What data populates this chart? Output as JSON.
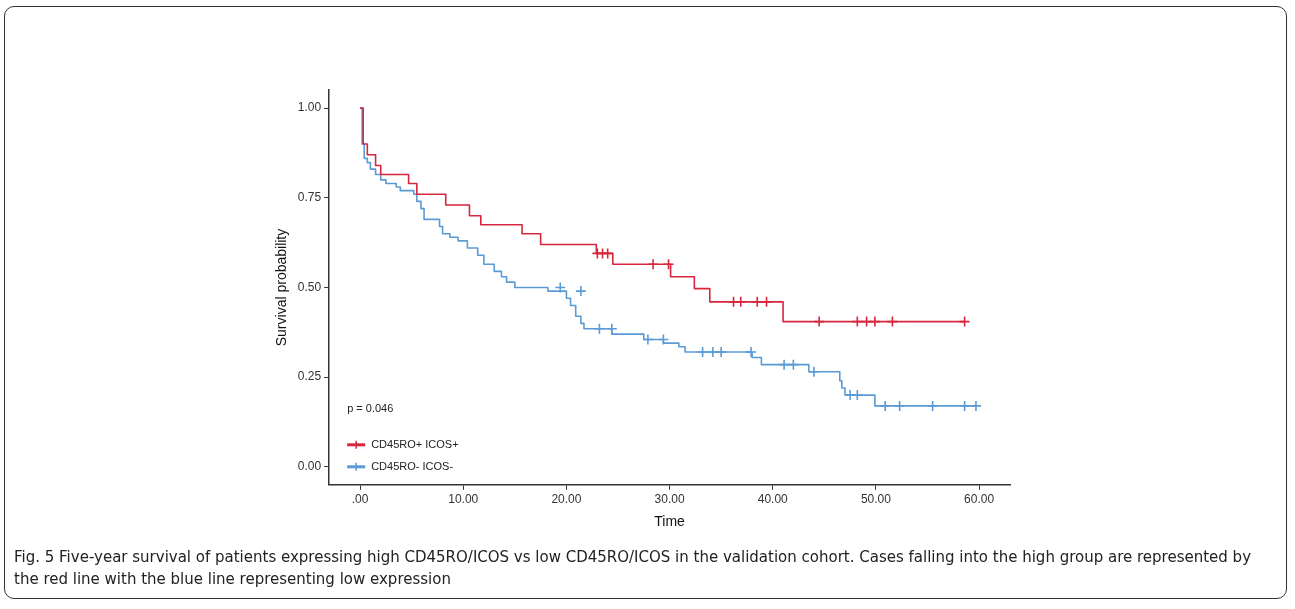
{
  "chart_data": {
    "type": "step",
    "xlabel": "Time",
    "ylabel": "Survival probability",
    "xlim": [
      -3,
      63
    ],
    "xticks": [
      {
        "value": 0,
        "label": ".00"
      },
      {
        "value": 10,
        "label": "10.00"
      },
      {
        "value": 20,
        "label": "20.00"
      },
      {
        "value": 30,
        "label": "30.00"
      },
      {
        "value": 40,
        "label": "40.00"
      },
      {
        "value": 50,
        "label": "50.00"
      },
      {
        "value": 60,
        "label": "60.00"
      }
    ],
    "ylim": [
      -0.05,
      1.05
    ],
    "yticks": [
      {
        "value": 0,
        "label": "0.00"
      },
      {
        "value": 0.25,
        "label": "0.25"
      },
      {
        "value": 0.5,
        "label": "0.50"
      },
      {
        "value": 0.75,
        "label": "0.75"
      },
      {
        "value": 1,
        "label": "1.00"
      }
    ],
    "grid": false,
    "legend": "bottom left",
    "line_style": "solid",
    "series": [
      {
        "name": "CD45RO+ ICOS+",
        "color": "#d7263d",
        "marker": "none",
        "x": [
          0,
          0.3,
          0.7,
          1.5,
          2,
          4.7,
          5.5,
          8.3,
          10.6,
          11.7,
          15.7,
          17.5,
          22.9,
          24.5,
          30.1,
          32.4,
          33.9,
          41,
          58.6
        ],
        "values": [
          1,
          0.9,
          0.87,
          0.84,
          0.815,
          0.79,
          0.76,
          0.73,
          0.7,
          0.675,
          0.65,
          0.62,
          0.595,
          0.565,
          0.53,
          0.497,
          0.46,
          0.405,
          0.405
        ]
      },
      {
        "name": "CD45RO- ICOS-",
        "color": "#5b9bd5",
        "marker": "none",
        "x": [
          0,
          0.2,
          0.4,
          0.7,
          1,
          1.5,
          2,
          2.5,
          3.5,
          3.9,
          5.2,
          5.5,
          5.9,
          6.2,
          7.7,
          8,
          8.7,
          9.5,
          10.4,
          11.4,
          12,
          13,
          13.7,
          14.2,
          15,
          18.2,
          20,
          20.4,
          20.9,
          21.4,
          21.7,
          24.4,
          27.5,
          29.4,
          30.9,
          31.5,
          38,
          38.9,
          43.5,
          46.5,
          46.7,
          47,
          47.2,
          49.9,
          59.7
        ],
        "values": [
          1,
          0.9,
          0.86,
          0.848,
          0.83,
          0.815,
          0.8,
          0.79,
          0.78,
          0.77,
          0.76,
          0.74,
          0.72,
          0.69,
          0.67,
          0.65,
          0.64,
          0.63,
          0.61,
          0.59,
          0.565,
          0.545,
          0.53,
          0.515,
          0.5,
          0.49,
          0.47,
          0.45,
          0.42,
          0.4,
          0.385,
          0.37,
          0.355,
          0.345,
          0.335,
          0.32,
          0.305,
          0.285,
          0.265,
          0.24,
          0.22,
          0.2,
          0.2,
          0.17,
          0.17
        ]
      },
      {
        "type": "scatter",
        "color": "#d7263d",
        "marker": "cross",
        "x": [
          23,
          23.5,
          24,
          28.4,
          29.9,
          36.2,
          36.9,
          38.5,
          39.4,
          44.5,
          48.2,
          49.1,
          49.9,
          51.6,
          58.6
        ],
        "values": [
          0.595,
          0.595,
          0.595,
          0.565,
          0.565,
          0.46,
          0.46,
          0.46,
          0.46,
          0.405,
          0.405,
          0.405,
          0.405,
          0.405,
          0.405
        ]
      },
      {
        "type": "scatter",
        "color": "#5b9bd5",
        "marker": "cross",
        "x": [
          19.4,
          21.4,
          23.2,
          24.4,
          27.9,
          29.4,
          33.2,
          34.2,
          35,
          37.9,
          41.1,
          42,
          44,
          47.5,
          48.2,
          50.9,
          52.3,
          55.5,
          58.6,
          59.7
        ],
        "values": [
          0.5,
          0.49,
          0.385,
          0.385,
          0.355,
          0.355,
          0.32,
          0.32,
          0.32,
          0.32,
          0.285,
          0.285,
          0.265,
          0.2,
          0.2,
          0.17,
          0.17,
          0.17,
          0.17,
          0.17
        ]
      }
    ],
    "annotations": [
      "p = 0.046",
      "Fig. 5 Five-year survival of patients expressing high CD45RO/ICOS vs low CD45RO/ICOS in the validation cohort. Cases falling into the high group are represented by the red line with the blue line representing low expression"
    ]
  }
}
